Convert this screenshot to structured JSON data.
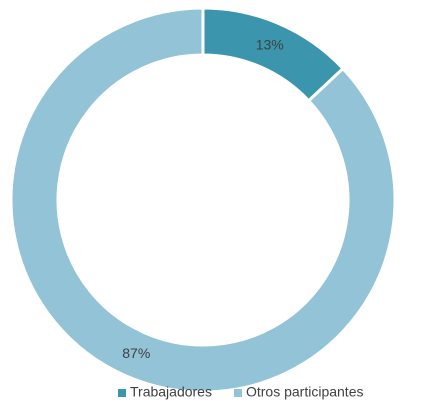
{
  "chart_data": {
    "type": "donut",
    "categories": [
      "Trabajadores",
      "Otros participantes"
    ],
    "values": [
      13,
      87
    ],
    "value_labels": [
      "13%",
      "87%"
    ],
    "colors": [
      "#3a95ad",
      "#92c3d6"
    ],
    "legend": "bottom"
  }
}
